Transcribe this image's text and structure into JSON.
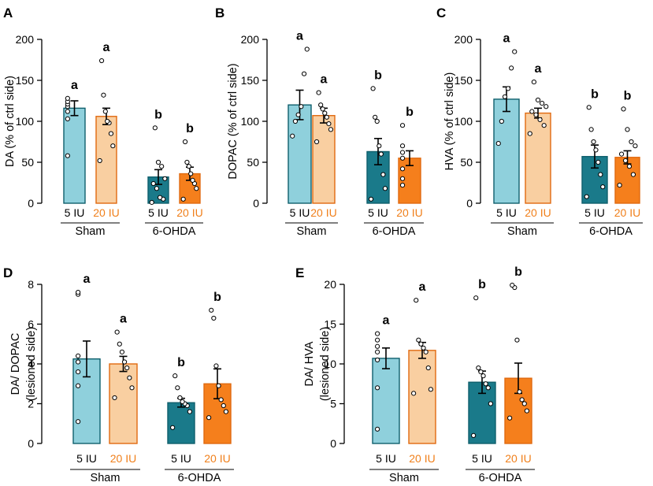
{
  "colors": {
    "sham_5iu": "#8fd0dc",
    "sham_20iu": "#f9cfa1",
    "ohda_5iu": "#1a7a8a",
    "ohda_20iu": "#f57f1c",
    "edge_teal": "#0f5f6c",
    "edge_orange": "#e06a10",
    "label_20iu": "#f07f1a"
  },
  "chart_data": [
    {
      "panel": "A",
      "type": "bar",
      "ylabel": "DA (% of ctrl side)",
      "ylim": [
        0,
        200
      ],
      "yticks": [
        0,
        50,
        100,
        150,
        200
      ],
      "ytick_labels": [
        "0",
        "50",
        "100",
        "150",
        "200"
      ],
      "groups": [
        "Sham",
        "6-OHDA"
      ],
      "bar_labels": [
        "5 IU",
        "20 IU",
        "5 IU",
        "20 IU"
      ],
      "series": [
        {
          "name": "Sham 5 IU",
          "group": "Sham",
          "dose": "5 IU",
          "mean": 116,
          "sem": 9,
          "sig": "a",
          "points": [
            58,
            103,
            112,
            118,
            121,
            124,
            128
          ]
        },
        {
          "name": "Sham 20 IU",
          "group": "Sham",
          "dose": "20 IU",
          "mean": 106,
          "sem": 10,
          "sig": "a",
          "points": [
            52,
            70,
            85,
            98,
            100,
            112,
            132,
            174
          ]
        },
        {
          "name": "6-OHDA 5 IU",
          "group": "6-OHDA",
          "dose": "5 IU",
          "mean": 32,
          "sem": 9,
          "sig": "b",
          "points": [
            1,
            5,
            7,
            18,
            24,
            30,
            45,
            50,
            92
          ]
        },
        {
          "name": "6-OHDA 20 IU",
          "group": "6-OHDA",
          "dose": "20 IU",
          "mean": 36,
          "sem": 8,
          "sig": "b",
          "points": [
            5,
            18,
            24,
            28,
            36,
            45,
            50,
            75
          ]
        }
      ]
    },
    {
      "panel": "B",
      "type": "bar",
      "ylabel": "DOPAC (% of ctrl side)",
      "ylim": [
        0,
        200
      ],
      "yticks": [
        0,
        50,
        100,
        150,
        200
      ],
      "ytick_labels": [
        "0",
        "50",
        "100",
        "150",
        "200"
      ],
      "groups": [
        "Sham",
        "6-OHDA"
      ],
      "bar_labels": [
        "5 IU",
        "20 IU",
        "5 IU",
        "20 IU"
      ],
      "series": [
        {
          "name": "Sham 5 IU",
          "group": "Sham",
          "dose": "5 IU",
          "mean": 120,
          "sem": 18,
          "sig": "a",
          "points": [
            82,
            100,
            108,
            118,
            158,
            188
          ]
        },
        {
          "name": "Sham 20 IU",
          "group": "Sham",
          "dose": "20 IU",
          "mean": 107,
          "sem": 9,
          "sig": "a",
          "points": [
            75,
            90,
            97,
            105,
            110,
            115,
            120,
            135
          ]
        },
        {
          "name": "6-OHDA 5 IU",
          "group": "6-OHDA",
          "dose": "5 IU",
          "mean": 63,
          "sem": 16,
          "sig": "b",
          "points": [
            5,
            18,
            35,
            60,
            70,
            100,
            105,
            140
          ]
        },
        {
          "name": "6-OHDA 20 IU",
          "group": "6-OHDA",
          "dose": "20 IU",
          "mean": 55,
          "sem": 9,
          "sig": "b",
          "points": [
            22,
            30,
            42,
            55,
            62,
            70,
            95
          ]
        }
      ]
    },
    {
      "panel": "C",
      "type": "bar",
      "ylabel": "HVA (% of ctrl side)",
      "ylim": [
        0,
        200
      ],
      "yticks": [
        0,
        50,
        100,
        150,
        200
      ],
      "ytick_labels": [
        "0",
        "50",
        "100",
        "150",
        "200"
      ],
      "groups": [
        "Sham",
        "6-OHDA"
      ],
      "bar_labels": [
        "5 IU",
        "20 IU",
        "5 IU",
        "20 IU"
      ],
      "series": [
        {
          "name": "Sham 5 IU",
          "group": "Sham",
          "dose": "5 IU",
          "mean": 127,
          "sem": 15,
          "sig": "a",
          "points": [
            73,
            100,
            130,
            140,
            165,
            185
          ]
        },
        {
          "name": "Sham 20 IU",
          "group": "Sham",
          "dose": "20 IU",
          "mean": 110,
          "sem": 6,
          "sig": "a",
          "points": [
            85,
            95,
            102,
            108,
            112,
            118,
            122,
            126,
            148
          ]
        },
        {
          "name": "6-OHDA 5 IU",
          "group": "6-OHDA",
          "dose": "5 IU",
          "mean": 57,
          "sem": 14,
          "sig": "b",
          "points": [
            8,
            20,
            35,
            50,
            65,
            75,
            90,
            117
          ]
        },
        {
          "name": "6-OHDA 20 IU",
          "group": "6-OHDA",
          "dose": "20 IU",
          "mean": 56,
          "sem": 8,
          "sig": "b",
          "points": [
            22,
            35,
            45,
            52,
            60,
            70,
            75,
            90,
            115
          ]
        }
      ]
    },
    {
      "panel": "D",
      "type": "bar",
      "ylabel_lines": [
        "DA/ DOPAC",
        "(lesioned side)"
      ],
      "ylim": [
        0,
        8
      ],
      "yticks": [
        0,
        2,
        4,
        6,
        8
      ],
      "ytick_labels": [
        "0",
        "2",
        "4",
        "6",
        "8"
      ],
      "groups": [
        "Sham",
        "6-OHDA"
      ],
      "bar_labels": [
        "5 IU",
        "20 IU",
        "5 IU",
        "20 IU"
      ],
      "series": [
        {
          "name": "Sham 5 IU",
          "group": "Sham",
          "dose": "5 IU",
          "mean": 4.25,
          "sem": 0.9,
          "sig": "a",
          "points": [
            1.1,
            2.9,
            3.6,
            4.1,
            4.4,
            7.5,
            7.6
          ]
        },
        {
          "name": "Sham 20 IU",
          "group": "Sham",
          "dose": "20 IU",
          "mean": 4.0,
          "sem": 0.38,
          "sig": "a",
          "points": [
            2.3,
            2.8,
            3.3,
            3.8,
            4.1,
            4.6,
            5.0,
            5.6
          ]
        },
        {
          "name": "6-OHDA 5 IU",
          "group": "6-OHDA",
          "dose": "5 IU",
          "mean": 2.05,
          "sem": 0.22,
          "sig": "b",
          "points": [
            0.8,
            1.6,
            1.9,
            2.0,
            2.1,
            2.3,
            2.8,
            3.4
          ]
        },
        {
          "name": "6-OHDA 20 IU",
          "group": "6-OHDA",
          "dose": "20 IU",
          "mean": 3.0,
          "sem": 0.75,
          "sig": "b",
          "points": [
            1.3,
            1.6,
            1.9,
            2.2,
            2.9,
            3.9,
            6.3,
            6.7
          ]
        }
      ]
    },
    {
      "panel": "E",
      "type": "bar",
      "ylabel_lines": [
        "DA/ HVA",
        "(lesioned side)"
      ],
      "ylim": [
        0,
        20
      ],
      "yticks": [
        0,
        5,
        10,
        15,
        20
      ],
      "ytick_labels": [
        "0",
        "5",
        "10",
        "15",
        "20"
      ],
      "groups": [
        "Sham",
        "6-OHDA"
      ],
      "bar_labels": [
        "5 IU",
        "20 IU",
        "5 IU",
        "20 IU"
      ],
      "series": [
        {
          "name": "Sham 5 IU",
          "group": "Sham",
          "dose": "5 IU",
          "mean": 10.7,
          "sem": 1.3,
          "sig": "a",
          "points": [
            1.8,
            7.0,
            10.5,
            11.5,
            12.2,
            13.0,
            13.8
          ]
        },
        {
          "name": "Sham 20 IU",
          "group": "Sham",
          "dose": "20 IU",
          "mean": 11.7,
          "sem": 1.0,
          "sig": "a",
          "points": [
            6.3,
            6.8,
            9.5,
            11.5,
            12.0,
            12.5,
            13.0,
            18.0
          ]
        },
        {
          "name": "6-OHDA 5 IU",
          "group": "6-OHDA",
          "dose": "5 IU",
          "mean": 7.7,
          "sem": 1.4,
          "sig": "b",
          "points": [
            1.0,
            5.0,
            7.0,
            7.5,
            8.5,
            9.0,
            9.5,
            18.3
          ]
        },
        {
          "name": "6-OHDA 20 IU",
          "group": "6-OHDA",
          "dose": "20 IU",
          "mean": 8.2,
          "sem": 1.9,
          "sig": "b",
          "points": [
            3.2,
            4.1,
            5.0,
            5.5,
            6.5,
            13.0,
            19.6,
            19.9
          ]
        }
      ]
    }
  ]
}
